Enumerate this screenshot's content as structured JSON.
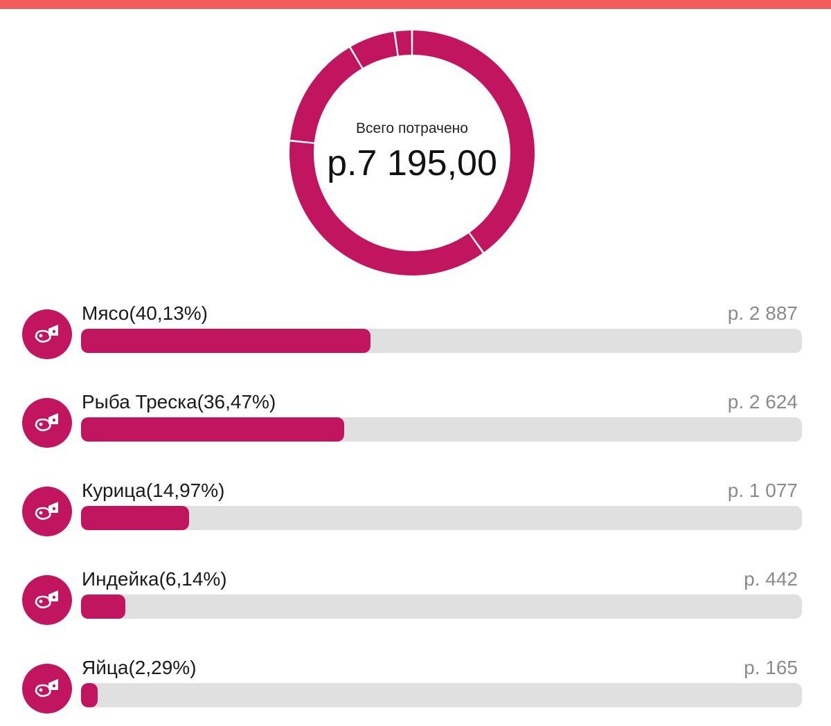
{
  "header": {
    "accent_color": "#f45b5b"
  },
  "summary": {
    "label": "Всего потрачено",
    "total": "р.7 195,00"
  },
  "colors": {
    "primary": "#c2155f",
    "track": "#e0e0e0",
    "amount_text": "#8a8a8a"
  },
  "chart_data": {
    "type": "pie",
    "categories": [
      "Мясо",
      "Рыба Треска",
      "Курица",
      "Индейка",
      "Яйца"
    ],
    "values": [
      2887,
      2624,
      1077,
      442,
      165
    ],
    "percent": [
      40.13,
      36.47,
      14.97,
      6.14,
      2.29
    ]
  },
  "categories": [
    {
      "label": "Мясо(40,13%)",
      "amount": "р. 2 887",
      "percent": 40.13,
      "icon": "food-icon"
    },
    {
      "label": "Рыба Треска(36,47%)",
      "amount": "р. 2 624",
      "percent": 36.47,
      "icon": "food-icon"
    },
    {
      "label": "Курица(14,97%)",
      "amount": "р. 1 077",
      "percent": 14.97,
      "icon": "food-icon"
    },
    {
      "label": "Индейка(6,14%)",
      "amount": "р. 442",
      "percent": 6.14,
      "icon": "food-icon"
    },
    {
      "label": "Яйца(2,29%)",
      "amount": "р. 165",
      "percent": 2.29,
      "icon": "food-icon"
    }
  ]
}
